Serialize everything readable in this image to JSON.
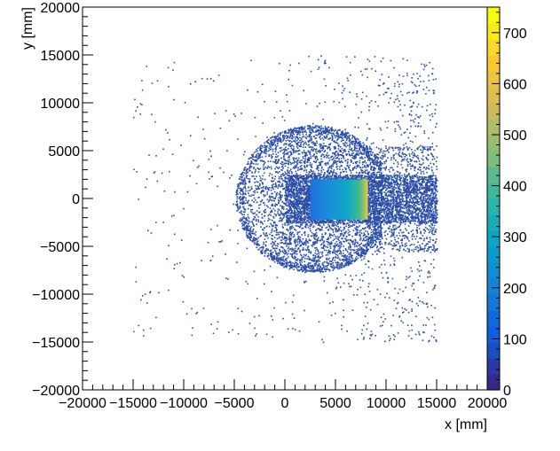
{
  "chart_data": {
    "type": "heatmap",
    "title": "",
    "xlabel": "x [mm]",
    "ylabel": "y [mm]",
    "xlim": [
      -20000,
      20000
    ],
    "ylim": [
      -20000,
      20000
    ],
    "x_ticks": [
      -20000,
      -15000,
      -10000,
      -5000,
      0,
      5000,
      10000,
      15000,
      20000
    ],
    "y_ticks": [
      -20000,
      -15000,
      -10000,
      -5000,
      0,
      5000,
      10000,
      15000,
      20000
    ],
    "x_tick_labels": [
      "−20000",
      "−15000",
      "−10000",
      "−5000",
      "0",
      "5000",
      "10000",
      "15000",
      "20000"
    ],
    "y_tick_labels": [
      "−20000",
      "−15000",
      "−10000",
      "−5000",
      "0",
      "5000",
      "10000",
      "15000",
      "20000"
    ],
    "grid": false,
    "legend": "none",
    "colorbar": {
      "min": 0,
      "max": 750,
      "ticks": [
        0,
        100,
        200,
        300,
        400,
        500,
        600,
        700
      ],
      "tick_labels": [
        "0",
        "100",
        "200",
        "300",
        "400",
        "500",
        "600",
        "700"
      ],
      "colors": [
        "#352a87",
        "#0f5cdd",
        "#1481d6",
        "#06a4ca",
        "#2eb7a4",
        "#87bf77",
        "#d1bb59",
        "#fec832",
        "#f9fb0e"
      ]
    },
    "regions": [
      {
        "name": "disc",
        "center": [
          2800,
          0
        ],
        "radius": 7700,
        "approx_count": 1
      },
      {
        "name": "beam-band",
        "x": [
          0,
          15000
        ],
        "y": [
          -2500,
          2500
        ],
        "approx_count": 10
      },
      {
        "name": "dense-block",
        "x": [
          2500,
          8200
        ],
        "y": [
          -2200,
          2000
        ],
        "counts_range": [
          100,
          750
        ]
      },
      {
        "name": "sparse-halo",
        "x": [
          -15000,
          15000
        ],
        "y": [
          -15000,
          15000
        ],
        "approx_count": 1
      }
    ]
  }
}
